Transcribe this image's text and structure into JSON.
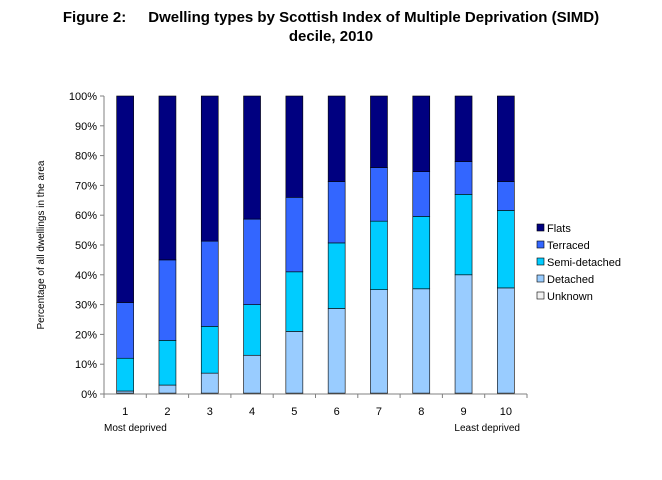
{
  "figure": {
    "label": "Figure 2:",
    "title_line1": "Dwelling types by Scottish Index of Multiple Deprivation (SIMD)",
    "title_line2": "decile, 2010"
  },
  "chart_data": {
    "type": "bar",
    "stacked": true,
    "title": "Dwelling types by Scottish Index of Multiple Deprivation (SIMD) decile, 2010",
    "ylabel": "Percentage of all dwellings in the area",
    "xlabel": "",
    "ylim": [
      0,
      100
    ],
    "y_ticks": [
      "0%",
      "10%",
      "20%",
      "30%",
      "40%",
      "50%",
      "60%",
      "70%",
      "80%",
      "90%",
      "100%"
    ],
    "grid": false,
    "legend_position": "right",
    "categories": [
      "1",
      "2",
      "3",
      "4",
      "5",
      "6",
      "7",
      "8",
      "9",
      "10"
    ],
    "x_annotations": {
      "left": "Most deprived",
      "right": "Least deprived"
    },
    "series": [
      {
        "name": "Unknown",
        "color": "#f2f2f2",
        "values": [
          0.3,
          0.3,
          0.3,
          0.3,
          0.3,
          0.3,
          0.3,
          0.3,
          0.3,
          0.3
        ]
      },
      {
        "name": "Detached",
        "color": "#99ccff",
        "values": [
          0.7,
          2.7,
          6.7,
          12.7,
          20.7,
          28.4,
          34.7,
          35.0,
          39.7,
          35.3
        ]
      },
      {
        "name": "Semi-detached",
        "color": "#00ccff",
        "values": [
          11.0,
          15.0,
          15.7,
          17.0,
          20.0,
          22.0,
          23.0,
          24.3,
          27.0,
          26.0
        ]
      },
      {
        "name": "Terraced",
        "color": "#3366ff",
        "values": [
          18.7,
          27.0,
          28.6,
          28.7,
          25.0,
          20.6,
          18.0,
          15.0,
          11.0,
          9.7
        ]
      },
      {
        "name": "Flats",
        "color": "#000080",
        "values": [
          69.3,
          55.0,
          48.7,
          41.3,
          34.0,
          28.7,
          24.0,
          25.4,
          22.0,
          28.7
        ]
      }
    ],
    "legend_order": [
      "Flats",
      "Terraced",
      "Semi-detached",
      "Detached",
      "Unknown"
    ]
  }
}
